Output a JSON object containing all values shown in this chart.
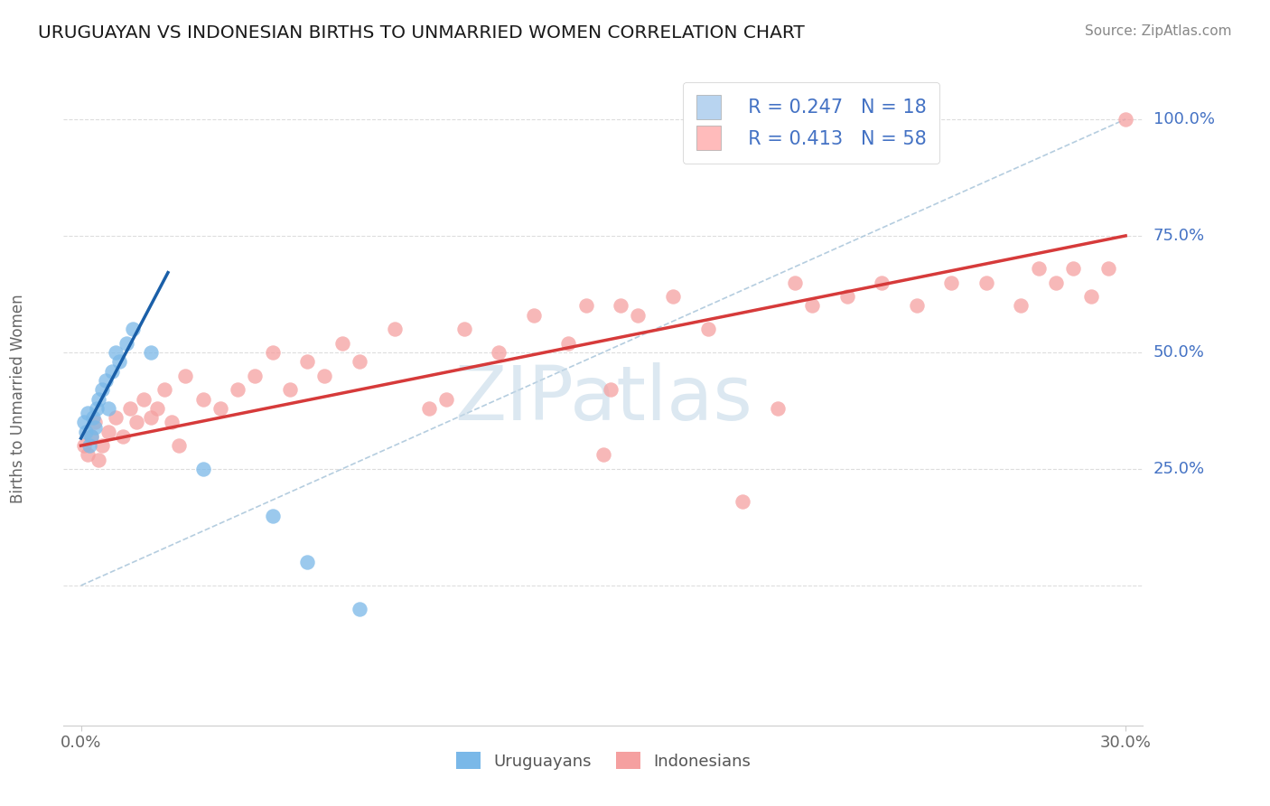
{
  "title": "URUGUAYAN VS INDONESIAN BIRTHS TO UNMARRIED WOMEN CORRELATION CHART",
  "source": "Source: ZipAtlas.com",
  "ylabel": "Births to Unmarried Women",
  "xlim": [
    0.0,
    30.0
  ],
  "ylim": [
    -30.0,
    110.0
  ],
  "yticks": [
    0.0,
    25.0,
    50.0,
    75.0,
    100.0
  ],
  "ytick_labels_right": [
    "",
    "25.0%",
    "50.0%",
    "75.0%",
    "100.0%"
  ],
  "xtick_positions": [
    0.0,
    30.0
  ],
  "xtick_labels": [
    "0.0%",
    "30.0%"
  ],
  "blue_scatter_color": "#7ab8e8",
  "pink_scatter_color": "#f5a0a0",
  "blue_line_color": "#1a5fa8",
  "pink_line_color": "#d63a3a",
  "diagonal_color": "#adc8dc",
  "watermark_color": "#c5d9e8",
  "legend_text_color": "#4472c4",
  "label_color_right": "#4472c4",
  "axis_label_color": "#666666",
  "grid_color": "#dddddd",
  "bg_color": "#ffffff",
  "uru_x": [
    0.1,
    0.15,
    0.2,
    0.25,
    0.3,
    0.35,
    0.4,
    0.45,
    0.5,
    0.6,
    0.7,
    0.8,
    0.9,
    1.0,
    1.1,
    1.3,
    1.5,
    2.0,
    3.5,
    5.5,
    6.5,
    8.0
  ],
  "uru_y": [
    35.0,
    33.0,
    37.0,
    30.0,
    32.0,
    36.0,
    34.0,
    38.0,
    40.0,
    42.0,
    44.0,
    38.0,
    46.0,
    50.0,
    48.0,
    52.0,
    55.0,
    50.0,
    25.0,
    15.0,
    5.0,
    -5.0
  ],
  "indo_x": [
    0.1,
    0.2,
    0.3,
    0.4,
    0.5,
    0.6,
    0.8,
    1.0,
    1.2,
    1.4,
    1.6,
    1.8,
    2.0,
    2.2,
    2.4,
    2.6,
    2.8,
    3.0,
    3.5,
    4.0,
    4.5,
    5.0,
    5.5,
    6.0,
    6.5,
    7.0,
    7.5,
    8.0,
    9.0,
    10.0,
    11.0,
    12.0,
    13.0,
    14.0,
    14.5,
    15.0,
    15.5,
    16.0,
    17.0,
    18.0,
    19.0,
    20.0,
    20.5,
    21.0,
    22.0,
    23.0,
    24.0,
    25.0,
    26.0,
    27.0,
    27.5,
    28.0,
    28.5,
    29.0,
    29.5,
    30.0,
    10.5,
    15.2
  ],
  "indo_y": [
    30.0,
    28.0,
    32.0,
    35.0,
    27.0,
    30.0,
    33.0,
    36.0,
    32.0,
    38.0,
    35.0,
    40.0,
    36.0,
    38.0,
    42.0,
    35.0,
    30.0,
    45.0,
    40.0,
    38.0,
    42.0,
    45.0,
    50.0,
    42.0,
    48.0,
    45.0,
    52.0,
    48.0,
    55.0,
    38.0,
    55.0,
    50.0,
    58.0,
    52.0,
    60.0,
    28.0,
    60.0,
    58.0,
    62.0,
    55.0,
    18.0,
    38.0,
    65.0,
    60.0,
    62.0,
    65.0,
    60.0,
    65.0,
    65.0,
    60.0,
    68.0,
    65.0,
    68.0,
    62.0,
    68.0,
    100.0,
    40.0,
    42.0
  ]
}
